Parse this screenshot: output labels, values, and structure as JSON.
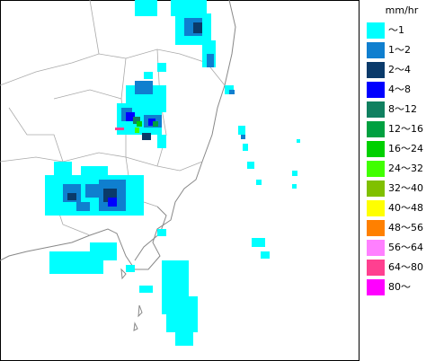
{
  "legend": {
    "unit": "mm/hr",
    "items": [
      {
        "label": "～1",
        "color": "#00ffff"
      },
      {
        "label": "1～2",
        "color": "#0f7fcf"
      },
      {
        "label": "2～4",
        "color": "#0a3a6a"
      },
      {
        "label": "4～8",
        "color": "#0000ff"
      },
      {
        "label": "8～12",
        "color": "#108060"
      },
      {
        "label": "12～16",
        "color": "#00a040"
      },
      {
        "label": "16～24",
        "color": "#00d000"
      },
      {
        "label": "24～32",
        "color": "#40ff00"
      },
      {
        "label": "32～40",
        "color": "#80c000"
      },
      {
        "label": "40～48",
        "color": "#ffff00"
      },
      {
        "label": "48～56",
        "color": "#ff8000"
      },
      {
        "label": "56～64",
        "color": "#ff80ff"
      },
      {
        "label": "64～80",
        "color": "#ff4090"
      },
      {
        "label": "80～",
        "color": "#ff00ff"
      }
    ]
  }
}
